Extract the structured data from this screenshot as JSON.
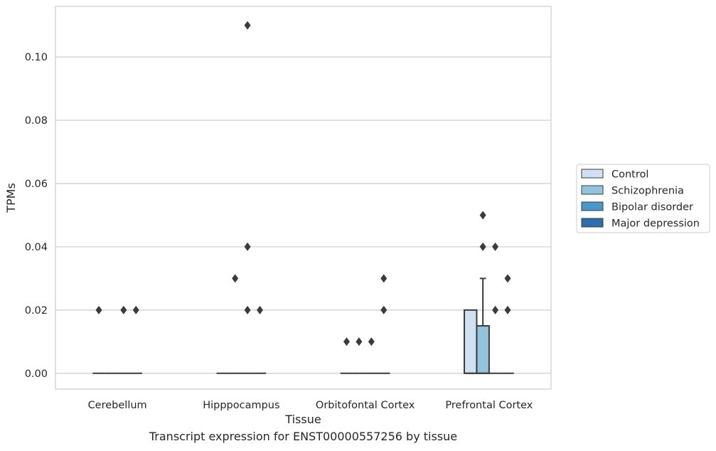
{
  "chart_data": {
    "type": "box",
    "xlabel": "Tissue",
    "ylabel": "TPMs",
    "ylim": [
      -0.005,
      0.116
    ],
    "yticks": [
      0.0,
      0.02,
      0.04,
      0.06,
      0.08,
      0.1
    ],
    "ytick_labels": [
      "0.00",
      "0.02",
      "0.04",
      "0.06",
      "0.08",
      "0.10"
    ],
    "grid": "horizontal",
    "legend_position": "right",
    "categories": [
      "Cerebellum",
      "Hipppocampus",
      "Orbitofontal Cortex",
      "Prefrontal Cortex"
    ],
    "series": [
      {
        "name": "Control",
        "color": "#cfe1f2",
        "boxes": [
          {
            "q1": 0,
            "median": 0,
            "q3": 0,
            "whisker_low": 0,
            "whisker_high": 0,
            "outliers": [
              0.02
            ]
          },
          {
            "q1": 0,
            "median": 0,
            "q3": 0,
            "whisker_low": 0,
            "whisker_high": 0,
            "outliers": []
          },
          {
            "q1": 0,
            "median": 0,
            "q3": 0,
            "whisker_low": 0,
            "whisker_high": 0,
            "outliers": [
              0.01
            ]
          },
          {
            "q1": 0,
            "median": 0,
            "q3": 0.02,
            "whisker_low": 0,
            "whisker_high": 0.02,
            "outliers": []
          }
        ]
      },
      {
        "name": "Schizophrenia",
        "color": "#93c4de",
        "boxes": [
          {
            "q1": 0,
            "median": 0,
            "q3": 0,
            "whisker_low": 0,
            "whisker_high": 0,
            "outliers": []
          },
          {
            "q1": 0,
            "median": 0,
            "q3": 0,
            "whisker_low": 0,
            "whisker_high": 0,
            "outliers": [
              0.03
            ]
          },
          {
            "q1": 0,
            "median": 0,
            "q3": 0,
            "whisker_low": 0,
            "whisker_high": 0,
            "outliers": [
              0.01
            ]
          },
          {
            "q1": 0,
            "median": 0,
            "q3": 0.015,
            "whisker_low": 0,
            "whisker_high": 0.03,
            "outliers": [
              0.04,
              0.05
            ]
          }
        ]
      },
      {
        "name": "Bipolar disorder",
        "color": "#4a98c9",
        "boxes": [
          {
            "q1": 0,
            "median": 0,
            "q3": 0,
            "whisker_low": 0,
            "whisker_high": 0,
            "outliers": [
              0.02
            ]
          },
          {
            "q1": 0,
            "median": 0,
            "q3": 0,
            "whisker_low": 0,
            "whisker_high": 0,
            "outliers": [
              0.02,
              0.04,
              0.11
            ]
          },
          {
            "q1": 0,
            "median": 0,
            "q3": 0,
            "whisker_low": 0,
            "whisker_high": 0,
            "outliers": [
              0.01
            ]
          },
          {
            "q1": 0,
            "median": 0,
            "q3": 0,
            "whisker_low": 0,
            "whisker_high": 0,
            "outliers": [
              0.02,
              0.04
            ]
          }
        ]
      },
      {
        "name": "Major depression",
        "color": "#2e6eac",
        "boxes": [
          {
            "q1": 0,
            "median": 0,
            "q3": 0,
            "whisker_low": 0,
            "whisker_high": 0,
            "outliers": [
              0.02
            ]
          },
          {
            "q1": 0,
            "median": 0,
            "q3": 0,
            "whisker_low": 0,
            "whisker_high": 0,
            "outliers": [
              0.02
            ]
          },
          {
            "q1": 0,
            "median": 0,
            "q3": 0,
            "whisker_low": 0,
            "whisker_high": 0,
            "outliers": [
              0.02,
              0.03
            ]
          },
          {
            "q1": 0,
            "median": 0,
            "q3": 0,
            "whisker_low": 0,
            "whisker_high": 0,
            "outliers": [
              0.02,
              0.03
            ]
          }
        ]
      }
    ]
  },
  "caption": "Transcript expression for ENST00000557256 by tissue"
}
